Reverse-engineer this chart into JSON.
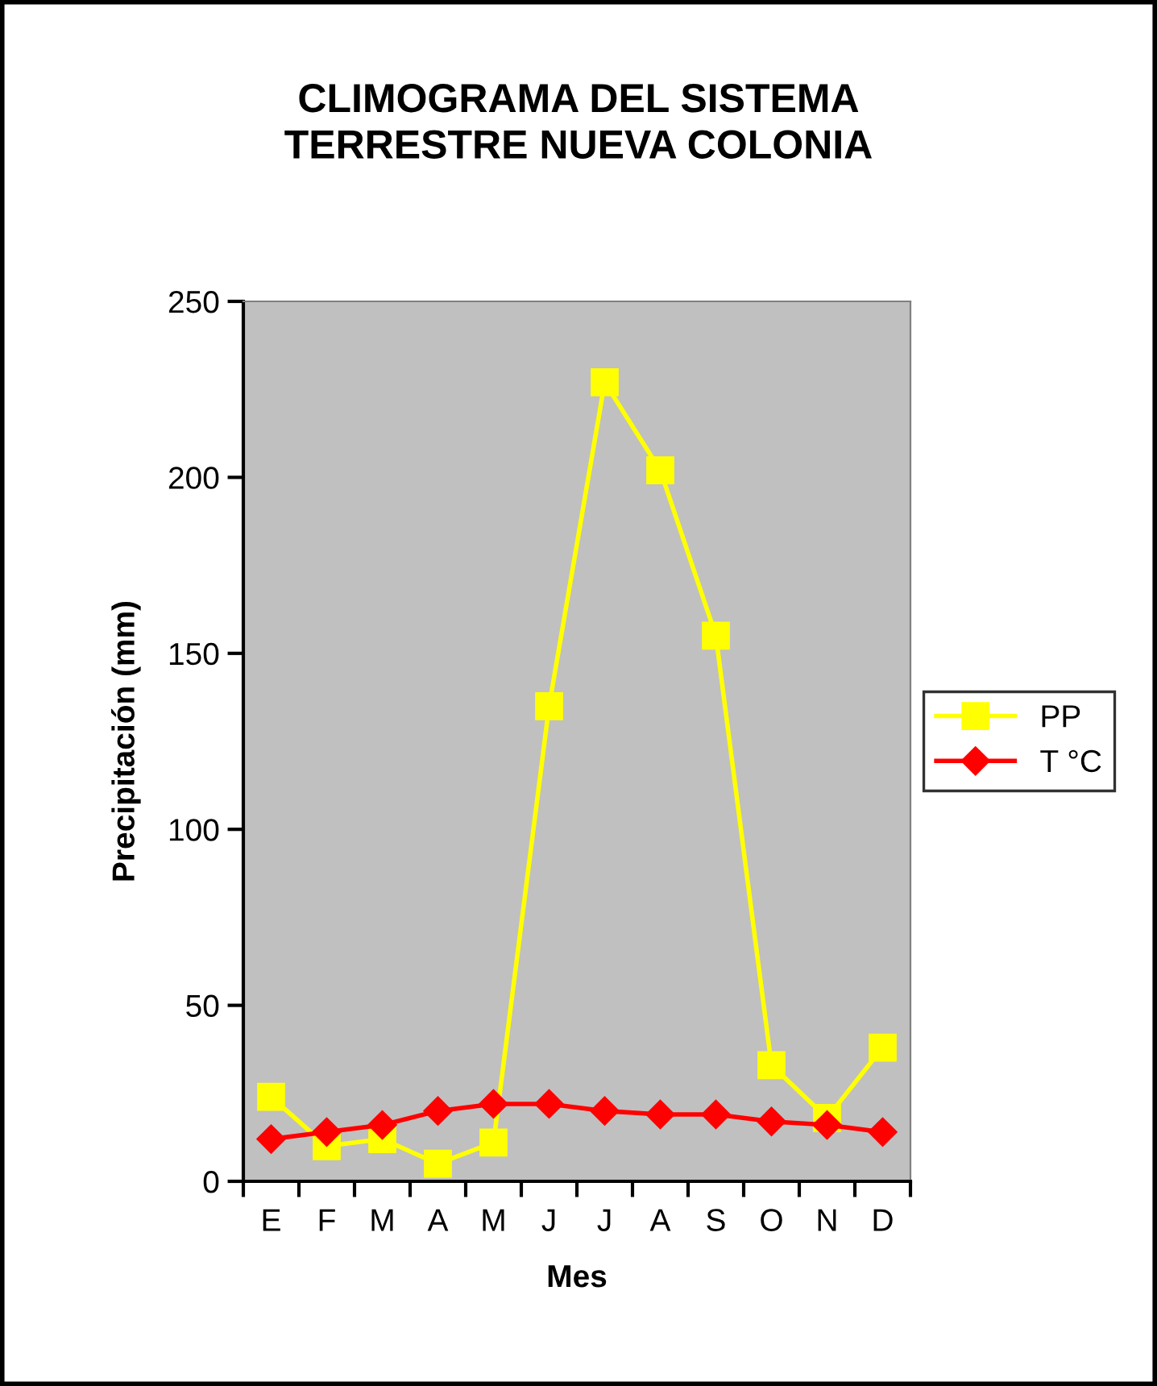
{
  "chart_data": {
    "type": "line",
    "title": "CLIMOGRAMA DEL SISTEMA\nTERRESTRE NUEVA COLONIA",
    "xlabel": "Mes",
    "ylabel": "Precipitación (mm)",
    "categories": [
      "E",
      "F",
      "M",
      "A",
      "M",
      "J",
      "J",
      "A",
      "S",
      "O",
      "N",
      "D"
    ],
    "series": [
      {
        "name": "PP",
        "color": "#ffff00",
        "marker": "square",
        "values": [
          24,
          10,
          12,
          5,
          11,
          135,
          227,
          202,
          155,
          33,
          18,
          38
        ]
      },
      {
        "name": "T °C",
        "color": "#ff0000",
        "marker": "diamond",
        "values": [
          12,
          14,
          16,
          20,
          22,
          22,
          20,
          19,
          19,
          17,
          16,
          14
        ]
      }
    ],
    "ylim": [
      0,
      250
    ],
    "yticks": [
      0,
      50,
      100,
      150,
      200,
      250
    ],
    "grid": false,
    "legend": "right"
  }
}
